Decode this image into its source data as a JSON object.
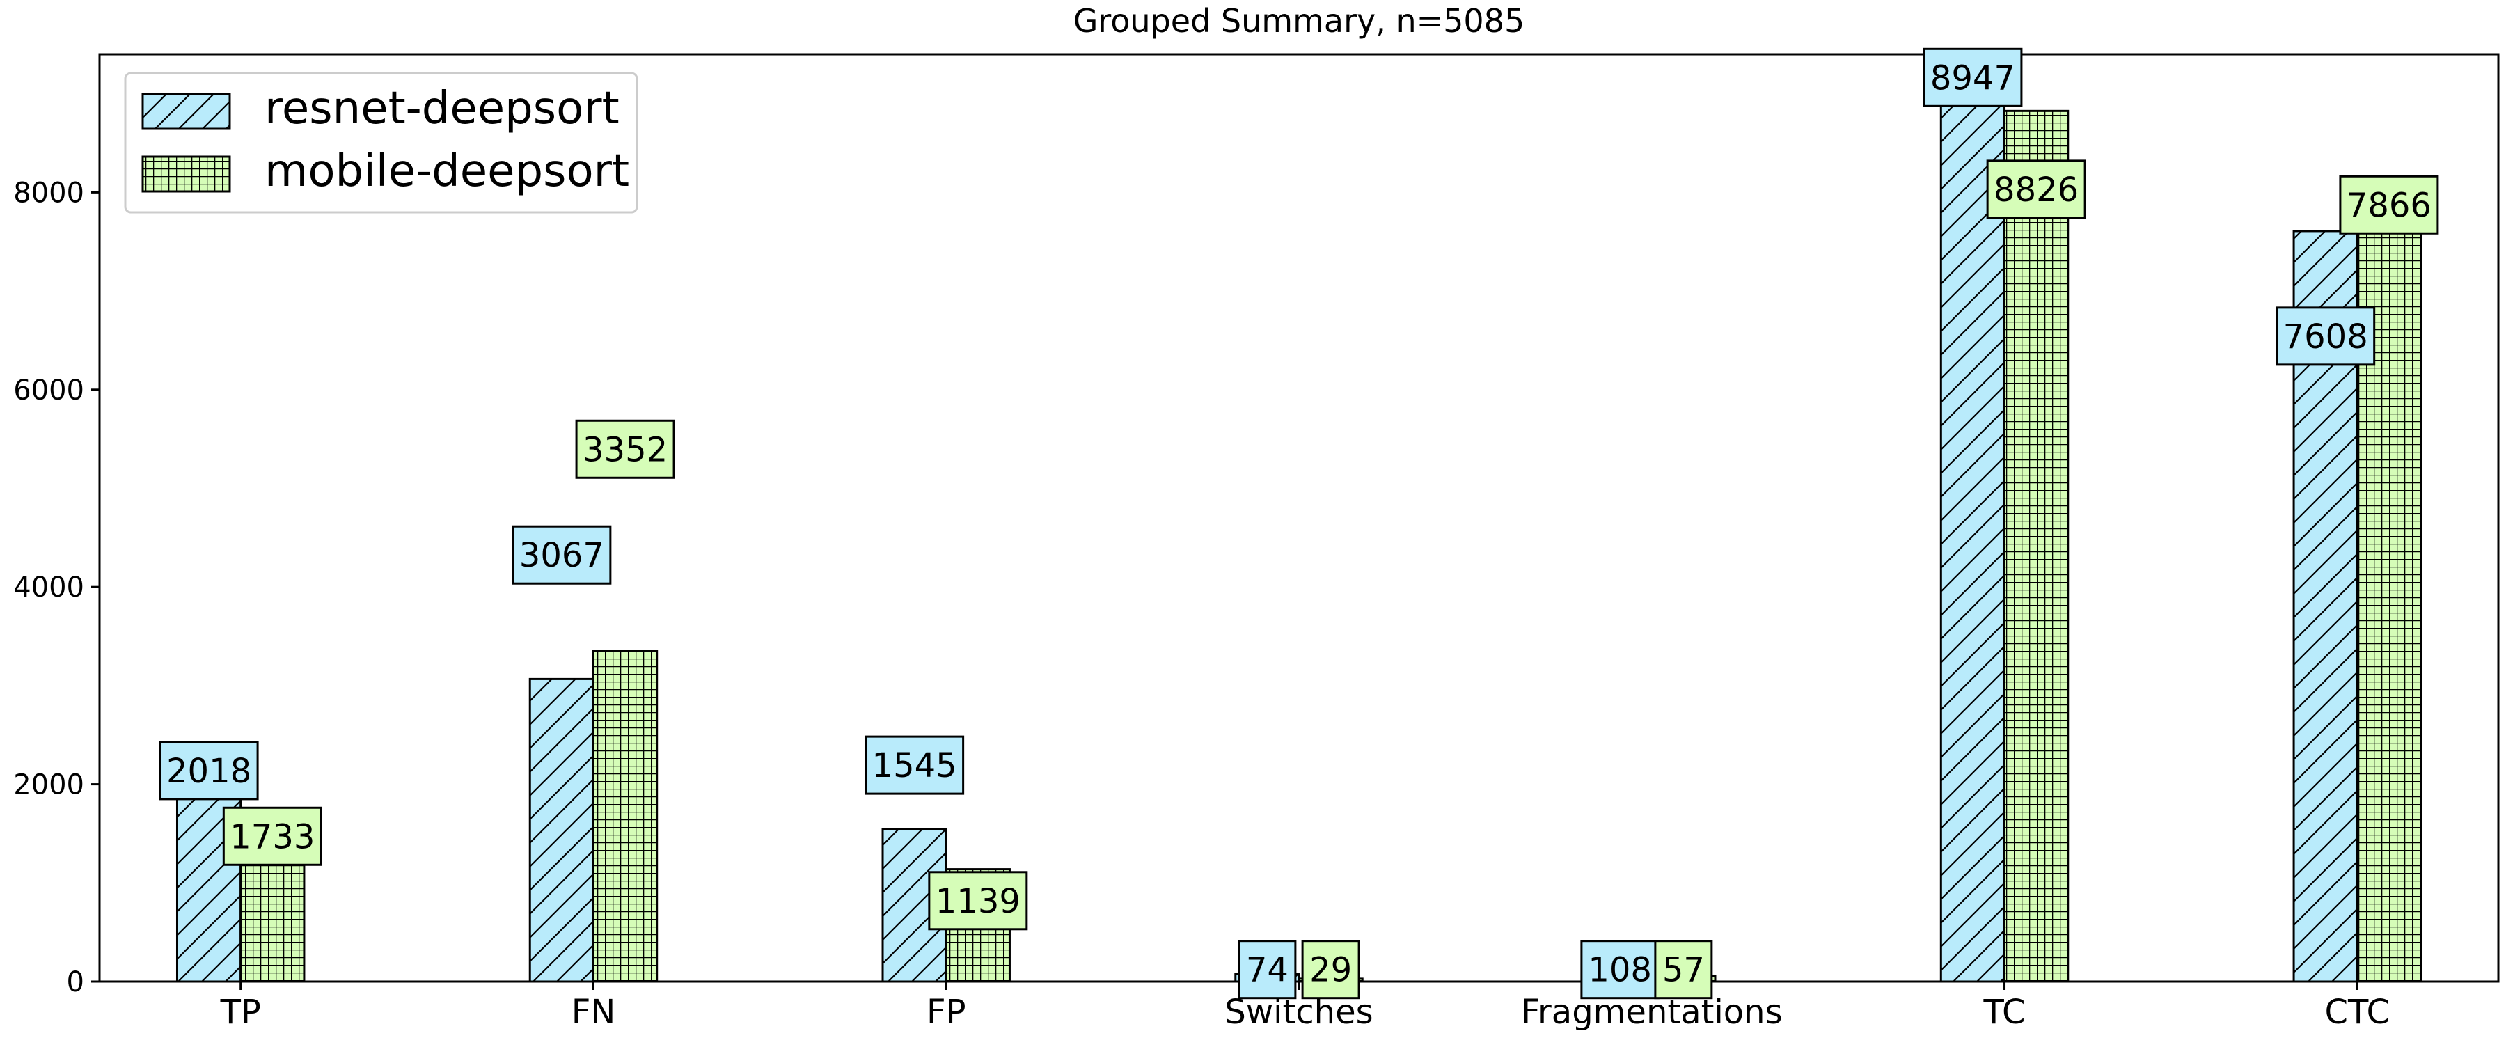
{
  "chart_data": {
    "type": "bar",
    "title": "Grouped Summary, n=5085",
    "xlabel": "",
    "ylabel": "",
    "categories": [
      "TP",
      "FN",
      "FP",
      "Switches",
      "Fragmentations",
      "TC",
      "CTC"
    ],
    "series": [
      {
        "name": "resnet-deepsort",
        "values": [
          2018,
          3067,
          1545,
          74,
          108,
          8947,
          7608
        ],
        "color": "#b9ebfb",
        "hatch": "diagonal"
      },
      {
        "name": "mobile-deepsort",
        "values": [
          1733,
          3352,
          1139,
          29,
          57,
          8826,
          7866
        ],
        "color": "#d6fdb8",
        "hatch": "grid"
      }
    ],
    "ylim": [
      0,
      9400
    ],
    "yticks": [
      0,
      2000,
      4000,
      6000,
      8000
    ],
    "grid": false,
    "legend": "top-left",
    "data_labels": true
  }
}
